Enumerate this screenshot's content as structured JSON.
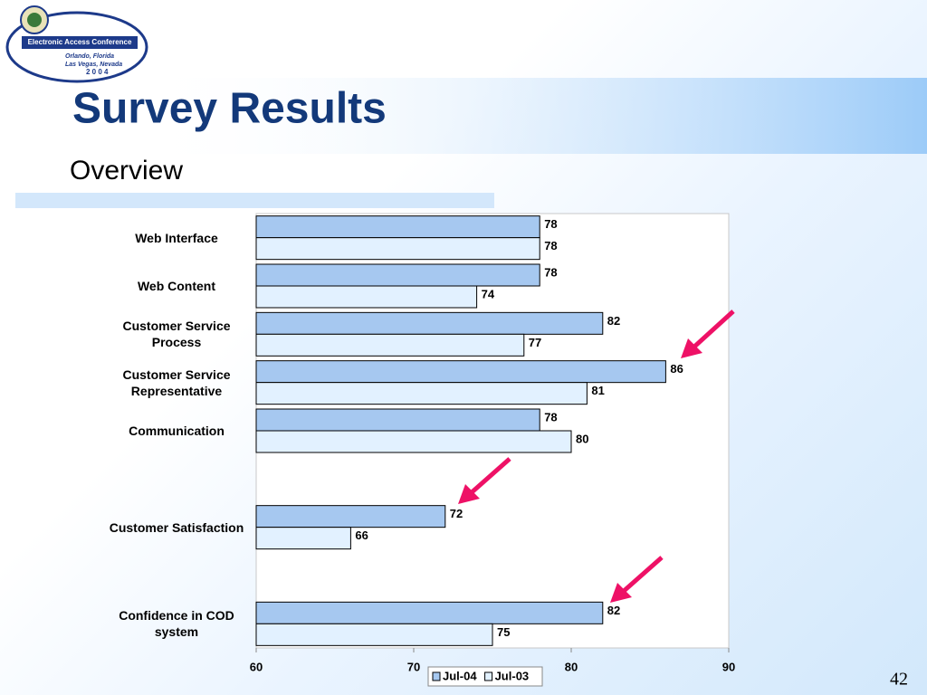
{
  "logo": {
    "title": "Electronic Access Conference",
    "lines": [
      "Orlando, Florida",
      "Las Vegas, Nevada",
      "2 0 0 4"
    ]
  },
  "slide": {
    "title": "Survey Results",
    "subtitle": "Overview",
    "page_number": "42"
  },
  "chart_data": {
    "type": "bar",
    "orientation": "horizontal",
    "categories": [
      "Web Interface",
      "Web Content",
      "Customer Service Process",
      "Customer Service Representative",
      "Communication",
      null,
      "Customer Satisfaction",
      null,
      "Confidence in COD system"
    ],
    "series": [
      {
        "name": "Jul-04",
        "color": "#a6c8f0",
        "values": [
          78,
          78,
          82,
          86,
          78,
          null,
          72,
          null,
          82
        ]
      },
      {
        "name": "Jul-03",
        "color": "#e2f1ff",
        "values": [
          78,
          74,
          77,
          81,
          80,
          null,
          66,
          null,
          75
        ]
      }
    ],
    "xlim": [
      60,
      90
    ],
    "xticks": [
      60,
      70,
      80,
      90
    ],
    "grid": false,
    "legend": "bottom"
  }
}
